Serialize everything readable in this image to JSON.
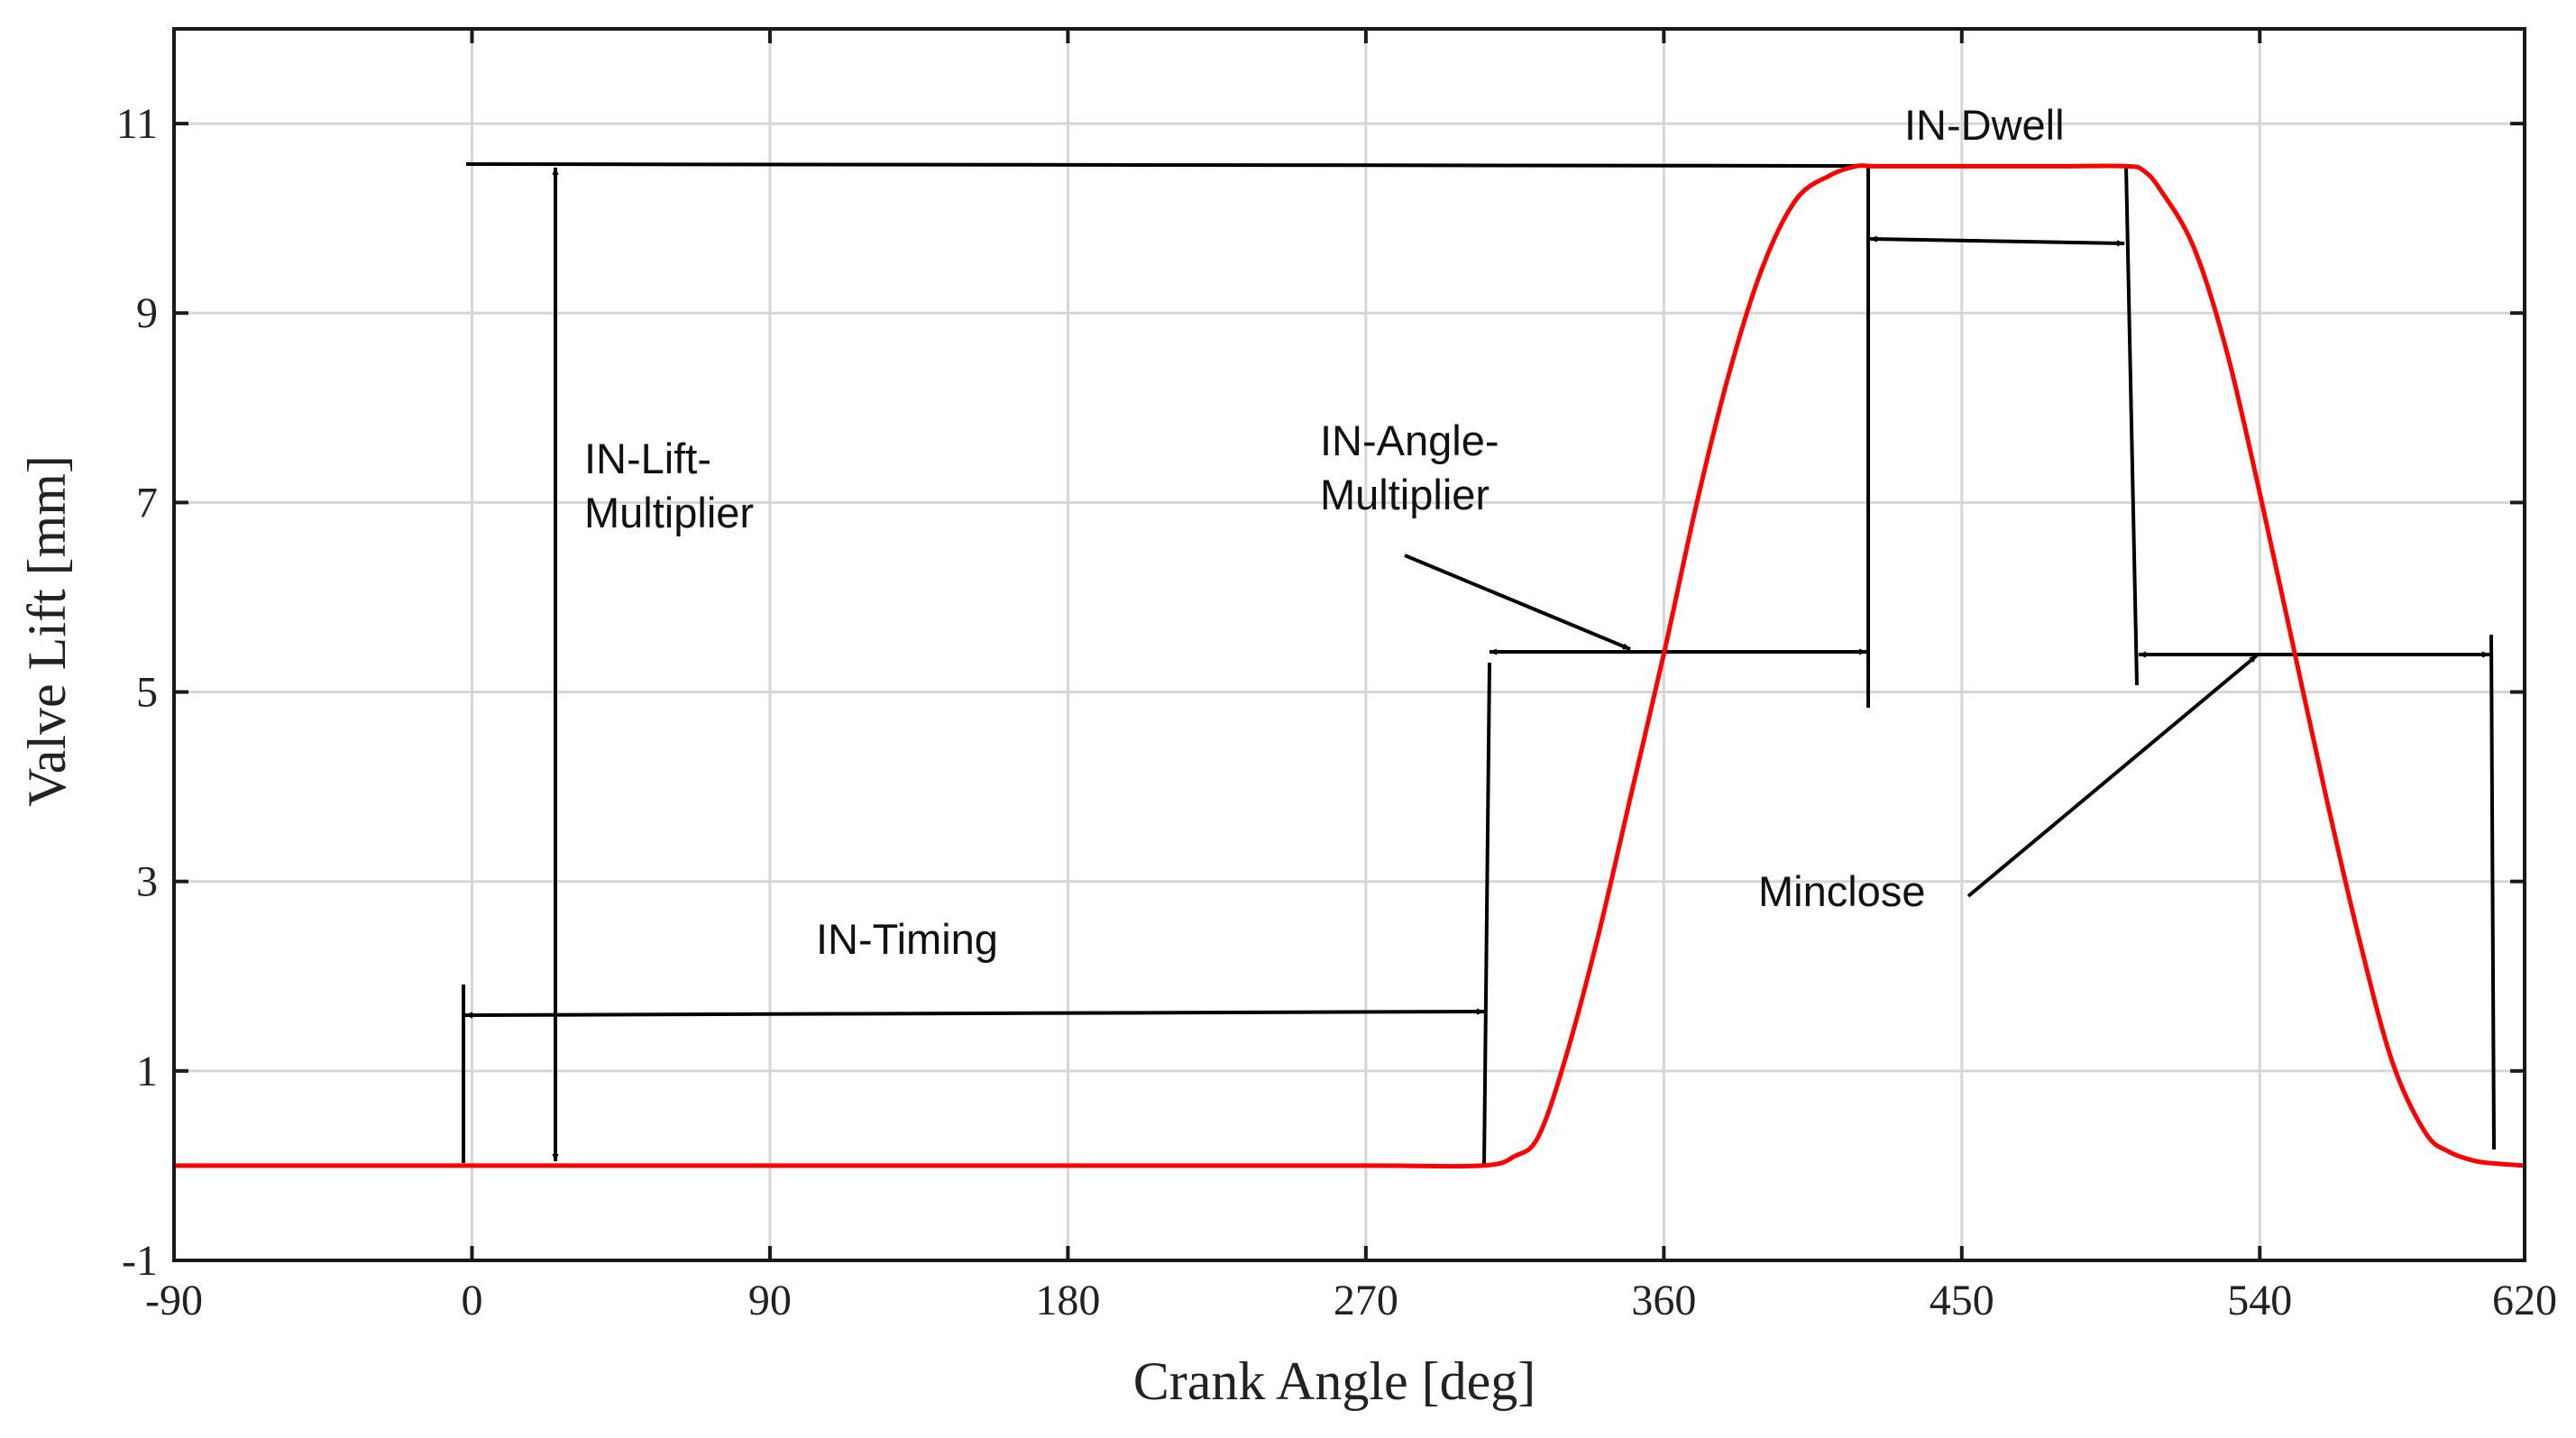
{
  "chart_data": {
    "type": "line",
    "title": "",
    "xlabel": "Crank Angle [deg]",
    "ylabel": "Valve Lift [mm]",
    "xlim": [
      -90,
      620
    ],
    "ylim": [
      -1,
      12
    ],
    "xticks": [
      -90,
      0,
      90,
      180,
      270,
      360,
      450,
      540,
      620
    ],
    "yticks": [
      -1,
      1,
      3,
      5,
      7,
      9,
      11
    ],
    "grid": true,
    "series": [
      {
        "name": "Valve lift",
        "color": "#ff0000",
        "x": [
          -90,
          0,
          90,
          180,
          270,
          305,
          315,
          322,
          330,
          340,
          350,
          360,
          370,
          380,
          390,
          400,
          410,
          418,
          423,
          428,
          450,
          480,
          500,
          505,
          510,
          520,
          530,
          540,
          550,
          560,
          570,
          580,
          590,
          597,
          605,
          612,
          620
        ],
        "y": [
          0,
          0,
          0,
          0,
          0,
          0,
          0.1,
          0.3,
          1.1,
          2.4,
          3.9,
          5.4,
          7.0,
          8.4,
          9.5,
          10.2,
          10.45,
          10.55,
          10.55,
          10.55,
          10.55,
          10.55,
          10.55,
          10.5,
          10.3,
          9.7,
          8.6,
          7.1,
          5.5,
          3.9,
          2.4,
          1.1,
          0.35,
          0.15,
          0.05,
          0.02,
          0
        ]
      }
    ],
    "annotations": [
      {
        "id": "lift-multiplier",
        "lines": [
          "IN-Lift-",
          "Multiplier"
        ]
      },
      {
        "id": "timing",
        "lines": [
          "IN-Timing"
        ]
      },
      {
        "id": "angle-multiplier",
        "lines": [
          "IN-Angle-",
          "Multiplier"
        ]
      },
      {
        "id": "dwell",
        "lines": [
          "IN-Dwell"
        ]
      },
      {
        "id": "minclose",
        "lines": [
          "Minclose"
        ]
      }
    ]
  }
}
